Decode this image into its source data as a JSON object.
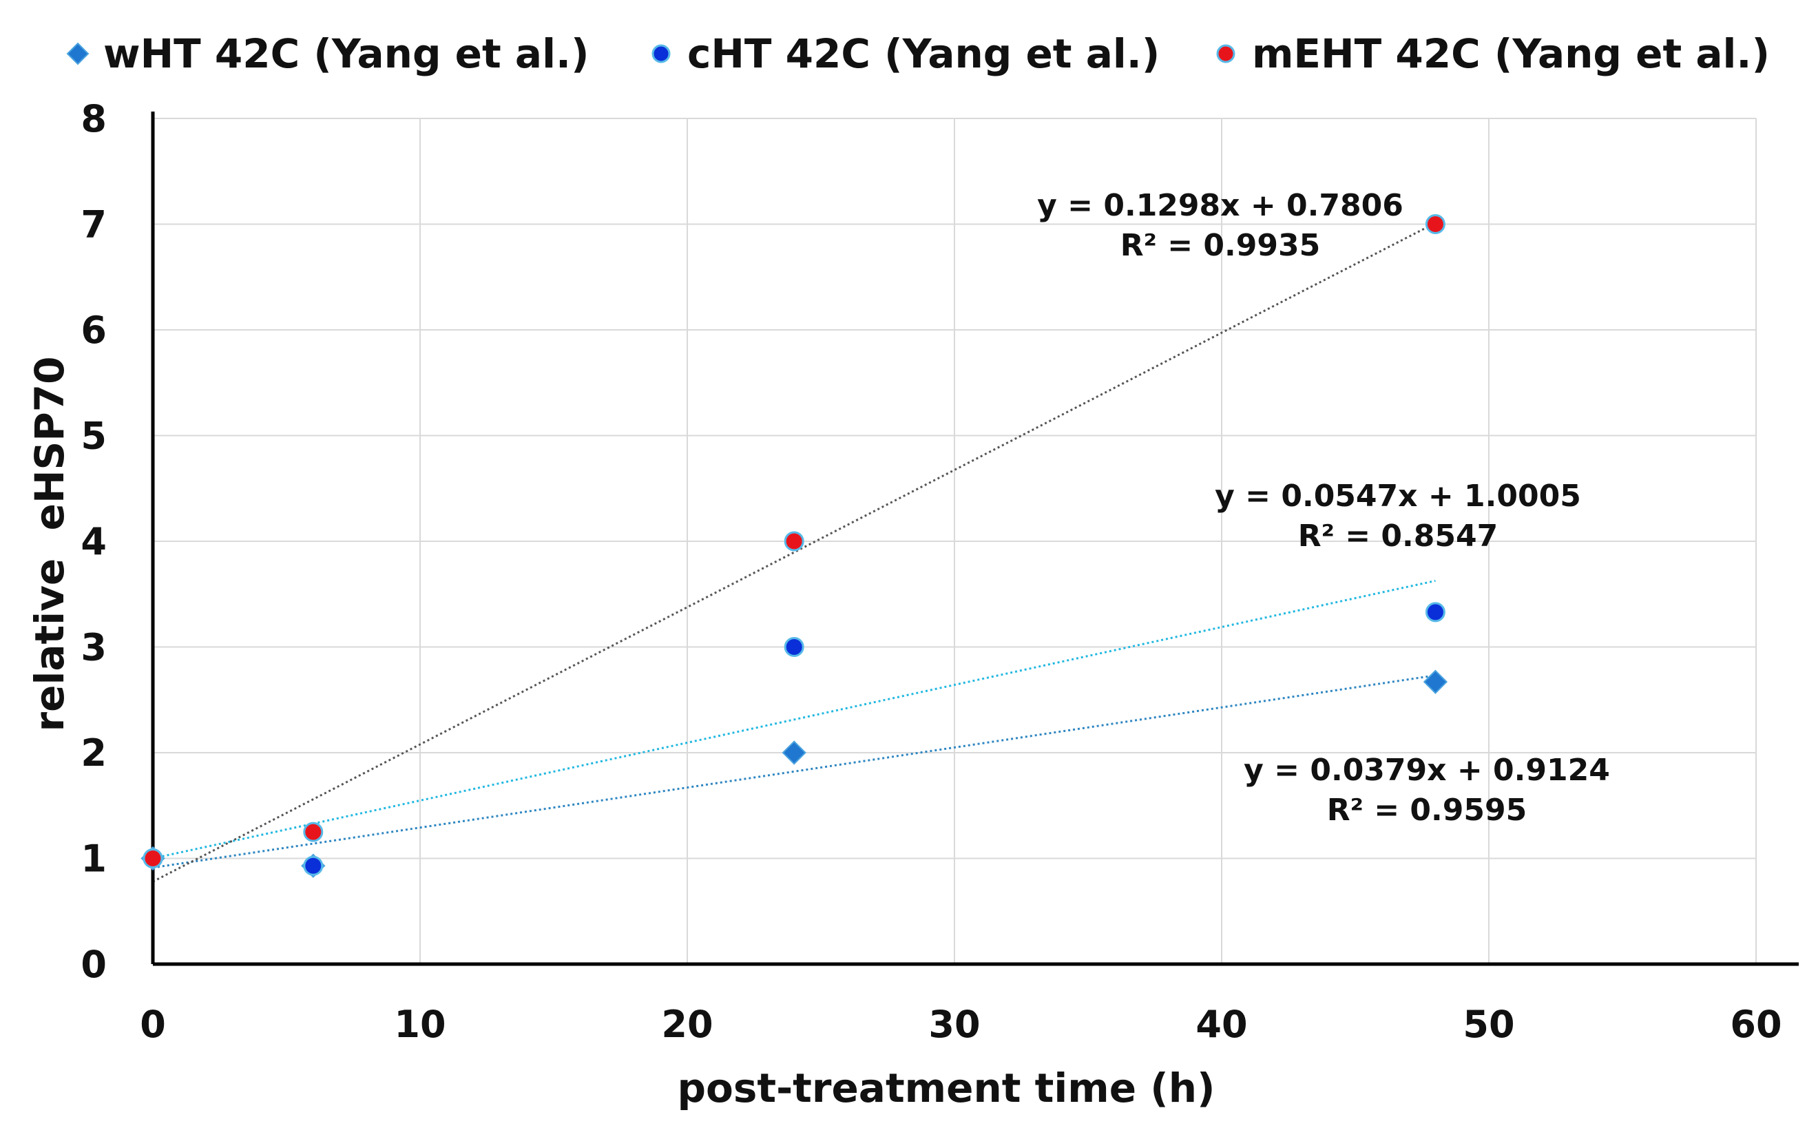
{
  "chart_data": {
    "type": "scatter",
    "title": "",
    "xlabel": "post-treatment time (h)",
    "ylabel": "relative  eHSP70",
    "xlim": [
      0,
      60
    ],
    "ylim": [
      0,
      8
    ],
    "xticks": [
      "0",
      "10",
      "20",
      "30",
      "40",
      "50",
      "60"
    ],
    "yticks": [
      "0",
      "1",
      "2",
      "3",
      "4",
      "5",
      "6",
      "7",
      "8"
    ],
    "grid": true,
    "legend_position": "top",
    "series": [
      {
        "name": "wHT 42C (Yang et al.)",
        "marker": "diamond",
        "color": "#1F77D0",
        "x": [
          0,
          6,
          24,
          48
        ],
        "y": [
          1,
          0.93,
          2,
          2.67
        ],
        "trendline": {
          "slope": 0.0379,
          "intercept": 0.9124,
          "x_range": [
            0,
            48
          ],
          "color": "#2E86C1",
          "equation": "y = 0.0379x + 0.9124",
          "r2": "R² = 0.9595"
        }
      },
      {
        "name": "cHT 42C (Yang et al.)",
        "marker": "circle",
        "color": "#0A2FD8",
        "x": [
          0,
          6,
          24,
          48
        ],
        "y": [
          1,
          0.93,
          3,
          3.33
        ],
        "trendline": {
          "slope": 0.0547,
          "intercept": 1.0005,
          "x_range": [
            0,
            48
          ],
          "color": "#22B8E0",
          "equation": "y = 0.0547x + 1.0005",
          "r2": "R² = 0.8547"
        }
      },
      {
        "name": "mEHT 42C (Yang et al.)",
        "marker": "circle",
        "color": "#E8141C",
        "x": [
          0,
          6,
          24,
          48
        ],
        "y": [
          1,
          1.25,
          4,
          7
        ],
        "trendline": {
          "slope": 0.1298,
          "intercept": 0.7806,
          "x_range": [
            0,
            48
          ],
          "color": "#555555",
          "equation": "y = 0.1298x + 0.7806",
          "r2": "R² = 0.9935"
        }
      }
    ]
  }
}
